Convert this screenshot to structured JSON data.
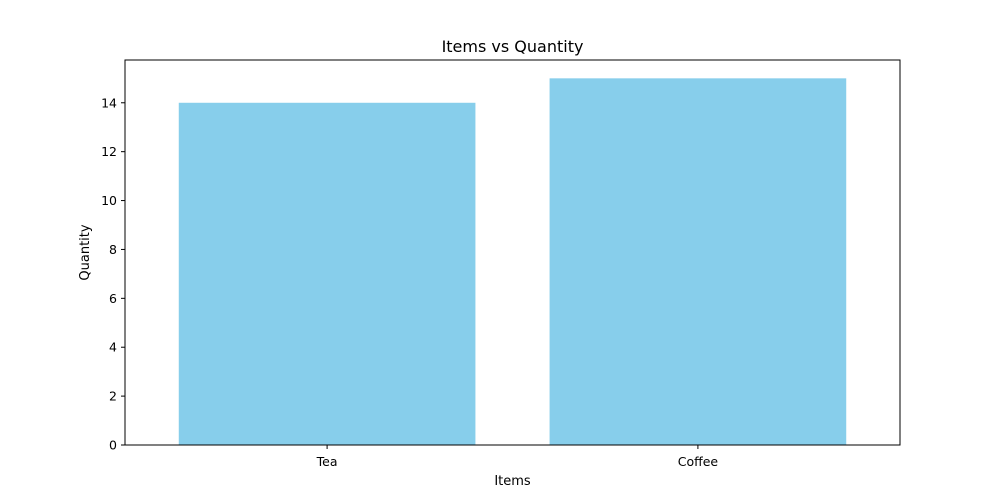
{
  "chart_data": {
    "type": "bar",
    "title": "Items vs Quantity",
    "xlabel": "Items",
    "ylabel": "Quantity",
    "categories": [
      "Tea",
      "Coffee"
    ],
    "values": [
      14,
      15
    ],
    "ylim": [
      0,
      15.75
    ],
    "yticks": [
      0,
      2,
      4,
      6,
      8,
      10,
      12,
      14
    ],
    "ytick_labels": [
      "0",
      "2",
      "4",
      "6",
      "8",
      "10",
      "12",
      "14"
    ],
    "bar_color": "#87CEEB",
    "grid": false,
    "legend": "none"
  }
}
